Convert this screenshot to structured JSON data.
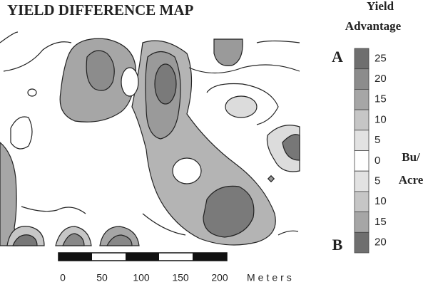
{
  "title": "YIELD DIFFERENCE MAP",
  "legend": {
    "title_line1": "Yield",
    "title_line2": "Advantage",
    "top_label": "A",
    "bottom_label": "B",
    "unit_line1": "Bu/",
    "unit_line2": "Acre",
    "classes": [
      {
        "label": 25,
        "color": "#6f6f6f"
      },
      {
        "label": 20,
        "color": "#8c8c8c"
      },
      {
        "label": 15,
        "color": "#a6a6a6"
      },
      {
        "label": 10,
        "color": "#c6c6c6"
      },
      {
        "label": 5,
        "color": "#e2e2e2"
      },
      {
        "label": 0,
        "color": "#ffffff"
      },
      {
        "label": 5,
        "color": "#e2e2e2"
      },
      {
        "label": 10,
        "color": "#c6c6c6"
      },
      {
        "label": 15,
        "color": "#a6a6a6"
      },
      {
        "label": 20,
        "color": "#6f6f6f"
      }
    ]
  },
  "scale_bar": {
    "ticks": [
      0,
      50,
      100,
      150,
      200
    ],
    "unit": "Meters"
  }
}
